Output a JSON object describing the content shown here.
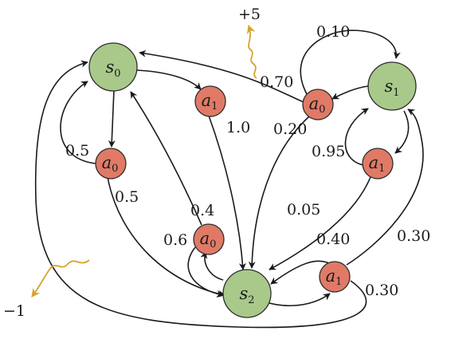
{
  "states": [
    {
      "id": "s0",
      "main": "s",
      "sub": "0"
    },
    {
      "id": "s1",
      "main": "s",
      "sub": "1"
    },
    {
      "id": "s2",
      "main": "s",
      "sub": "2"
    }
  ],
  "actions": [
    {
      "id": "s0a0",
      "main": "a",
      "sub": "0"
    },
    {
      "id": "s0a1",
      "main": "a",
      "sub": "1"
    },
    {
      "id": "s1a0",
      "main": "a",
      "sub": "0"
    },
    {
      "id": "s1a1",
      "main": "a",
      "sub": "1"
    },
    {
      "id": "s2a0",
      "main": "a",
      "sub": "0"
    },
    {
      "id": "s2a1",
      "main": "a",
      "sub": "1"
    }
  ],
  "transitions": [
    {
      "id": "s0a0_s0",
      "from": "s0a0",
      "to": "s0",
      "label": "0.5"
    },
    {
      "id": "s0a0_s2",
      "from": "s0a0",
      "to": "s2",
      "label": "0.5"
    },
    {
      "id": "s0a1_s2",
      "from": "s0a1",
      "to": "s2",
      "label": "1.0"
    },
    {
      "id": "s1a0_s0",
      "from": "s1a0",
      "to": "s0",
      "label": "0.70"
    },
    {
      "id": "s1a0_s1",
      "from": "s1a0",
      "to": "s1",
      "label": "0.10"
    },
    {
      "id": "s1a0_s2",
      "from": "s1a0",
      "to": "s2",
      "label": "0.20"
    },
    {
      "id": "s1a1_s1",
      "from": "s1a1",
      "to": "s1",
      "label": "0.95"
    },
    {
      "id": "s1a1_s2",
      "from": "s1a1",
      "to": "s2",
      "label": "0.05"
    },
    {
      "id": "s2a0_s0",
      "from": "s2a0",
      "to": "s0",
      "label": "0.4"
    },
    {
      "id": "s2a0_s2",
      "from": "s2a0",
      "to": "s2",
      "label": "0.6"
    },
    {
      "id": "s2a1_s2",
      "from": "s2a1",
      "to": "s2",
      "label": "0.40"
    },
    {
      "id": "s2a1_s1",
      "from": "s2a1",
      "to": "s1",
      "label": "0.30"
    },
    {
      "id": "s2a1_s0",
      "from": "s2a1",
      "to": "s0",
      "label": "0.30"
    }
  ],
  "rewards": [
    {
      "id": "reward_pos",
      "value": "+5"
    },
    {
      "id": "reward_neg",
      "value": "−1"
    }
  ],
  "colors": {
    "state": "#a9c98a",
    "action": "#e07a66",
    "reward": "#d4a52a",
    "edge": "#1a1a1a"
  }
}
